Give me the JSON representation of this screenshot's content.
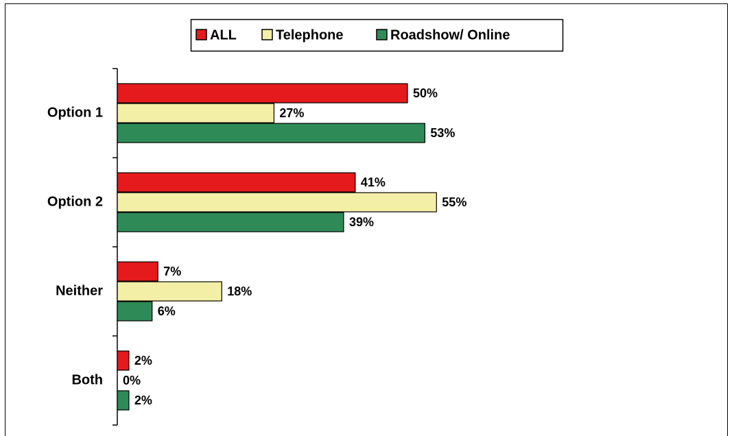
{
  "chart_data": {
    "type": "bar",
    "orientation": "horizontal",
    "categories": [
      "Option 1",
      "Option 2",
      "Neither",
      "Both"
    ],
    "series": [
      {
        "name": "ALL",
        "color": "#e41a1c",
        "values": [
          50,
          41,
          7,
          2
        ],
        "value_labels": [
          "50%",
          "41%",
          "7%",
          "2%"
        ]
      },
      {
        "name": "Telephone",
        "color": "#f4efa6",
        "values": [
          27,
          55,
          18,
          0
        ],
        "value_labels": [
          "27%",
          "55%",
          "18%",
          "0%"
        ]
      },
      {
        "name": "Roadshow/ Online",
        "color": "#2e8b57",
        "values": [
          53,
          39,
          6,
          2
        ],
        "value_labels": [
          "53%",
          "39%",
          "6%",
          "2%"
        ]
      }
    ],
    "legend": "top"
  }
}
